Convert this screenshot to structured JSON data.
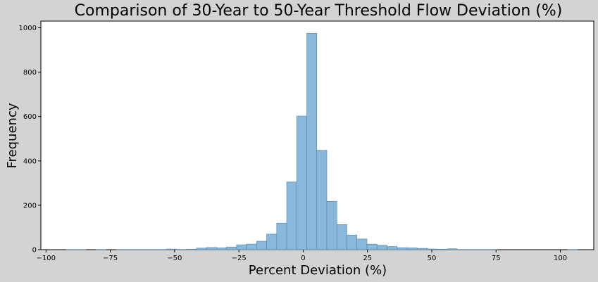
{
  "chart_data": {
    "type": "bar",
    "title": "Comparison of 30-Year to 50-Year Threshold Flow Deviation (%)",
    "xlabel": "Percent Deviation (%)",
    "ylabel": "Frequency",
    "xlim": [
      -102,
      113
    ],
    "ylim": [
      0,
      1030
    ],
    "bin_width": 3.9,
    "x_ticks": [
      -100,
      -75,
      -50,
      -25,
      0,
      25,
      50,
      75,
      100
    ],
    "x_tick_labels": [
      "−100",
      "−75",
      "−50",
      "−25",
      "0",
      "25",
      "50",
      "75",
      "100"
    ],
    "y_ticks": [
      0,
      200,
      400,
      600,
      800,
      1000
    ],
    "y_tick_labels": [
      "0",
      "200",
      "400",
      "600",
      "800",
      "1000"
    ],
    "bar_fill": "#89b8da",
    "bar_edge": "#4a86b0",
    "plot_background": "#ffffff",
    "figure_background": "#d3d3d3",
    "grid": false,
    "bins": [
      {
        "x": -92.2,
        "count": 1
      },
      {
        "x": -88.3,
        "count": 1
      },
      {
        "x": -80.5,
        "count": 1
      },
      {
        "x": -72.7,
        "count": 1
      },
      {
        "x": -68.8,
        "count": 1
      },
      {
        "x": -64.9,
        "count": 1
      },
      {
        "x": -61.0,
        "count": 1
      },
      {
        "x": -57.1,
        "count": 1
      },
      {
        "x": -53.2,
        "count": 3
      },
      {
        "x": -49.3,
        "count": 1
      },
      {
        "x": -45.4,
        "count": 2
      },
      {
        "x": -41.5,
        "count": 7
      },
      {
        "x": -37.6,
        "count": 10
      },
      {
        "x": -33.7,
        "count": 8
      },
      {
        "x": -29.8,
        "count": 12
      },
      {
        "x": -25.9,
        "count": 22
      },
      {
        "x": -22.0,
        "count": 25
      },
      {
        "x": -18.1,
        "count": 38
      },
      {
        "x": -14.2,
        "count": 70
      },
      {
        "x": -10.3,
        "count": 120
      },
      {
        "x": -6.4,
        "count": 305
      },
      {
        "x": -2.5,
        "count": 602
      },
      {
        "x": 1.4,
        "count": 975
      },
      {
        "x": 5.3,
        "count": 448
      },
      {
        "x": 9.2,
        "count": 218
      },
      {
        "x": 13.1,
        "count": 113
      },
      {
        "x": 17.0,
        "count": 66
      },
      {
        "x": 20.9,
        "count": 48
      },
      {
        "x": 24.8,
        "count": 25
      },
      {
        "x": 28.7,
        "count": 20
      },
      {
        "x": 32.6,
        "count": 14
      },
      {
        "x": 36.5,
        "count": 9
      },
      {
        "x": 40.4,
        "count": 8
      },
      {
        "x": 44.3,
        "count": 6
      },
      {
        "x": 48.2,
        "count": 3
      },
      {
        "x": 52.1,
        "count": 2
      },
      {
        "x": 56.0,
        "count": 4
      },
      {
        "x": 59.9,
        "count": 1
      },
      {
        "x": 63.8,
        "count": 1
      },
      {
        "x": 67.7,
        "count": 1
      },
      {
        "x": 71.6,
        "count": 1
      },
      {
        "x": 102.8,
        "count": 1
      }
    ]
  }
}
